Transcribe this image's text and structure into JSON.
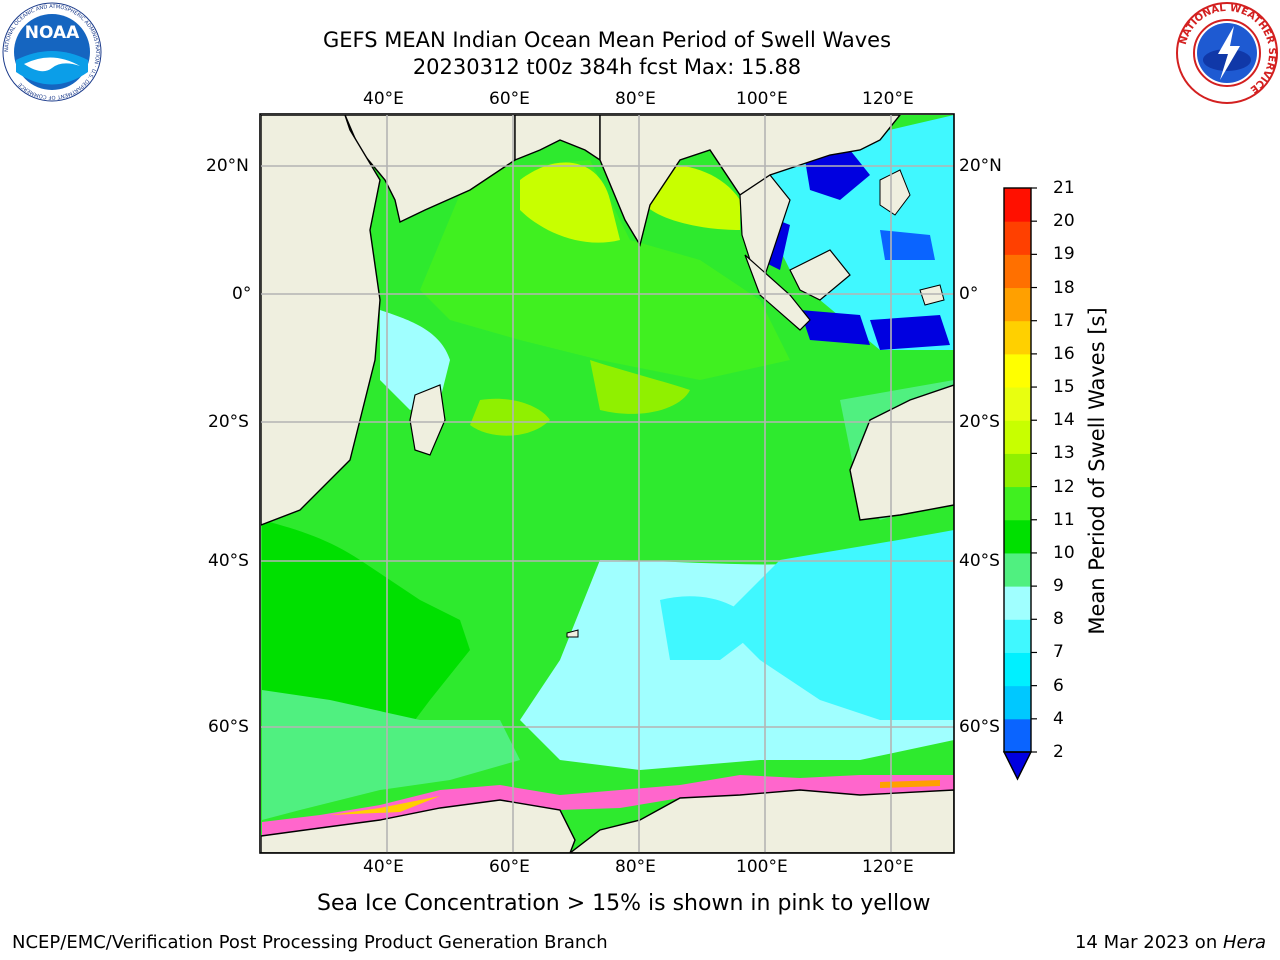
{
  "title": {
    "line1": "GEFS MEAN Indian Ocean Mean Period of Swell Waves",
    "line2": "20230312 t00z 384h fcst   Max: 15.88"
  },
  "map": {
    "lon_labels": [
      "40°E",
      "60°E",
      "80°E",
      "100°E",
      "120°E"
    ],
    "lat_labels": [
      "20°N",
      "0°",
      "20°S",
      "40°S",
      "60°S"
    ],
    "region": "Indian Ocean",
    "land_color": "#efefdf",
    "grid_color": "#b4b4b4"
  },
  "colorbar": {
    "label": "Mean Period of Swell Waves [s]",
    "ticks": [
      "2",
      "4",
      "6",
      "7",
      "8",
      "9",
      "10",
      "11",
      "12",
      "13",
      "14",
      "15",
      "16",
      "17",
      "18",
      "19",
      "20",
      "21"
    ],
    "colors": [
      "#0a64ff",
      "#00c8ff",
      "#00f0ff",
      "#40f8ff",
      "#a0ffff",
      "#50f080",
      "#00e000",
      "#40f020",
      "#90f000",
      "#c8ff00",
      "#e8ff10",
      "#ffff00",
      "#ffd000",
      "#ffa000",
      "#ff7000",
      "#ff4000",
      "#ff1000"
    ],
    "under_color": "#0000e0"
  },
  "sea_ice_note": "Sea Ice Concentration > 15% is shown in pink to yellow",
  "footer": {
    "left": "NCEP/EMC/Verification Post Processing Product Generation Branch",
    "right_date": "14 Mar 2023 on ",
    "right_host": "Hera"
  },
  "logos": {
    "noaa": "NOAA",
    "noaa_ring": "NATIONAL OCEANIC AND ATMOSPHERIC ADMINISTRATION · U.S. DEPARTMENT OF COMMERCE",
    "nws_ring": "NATIONAL WEATHER SERVICE"
  }
}
